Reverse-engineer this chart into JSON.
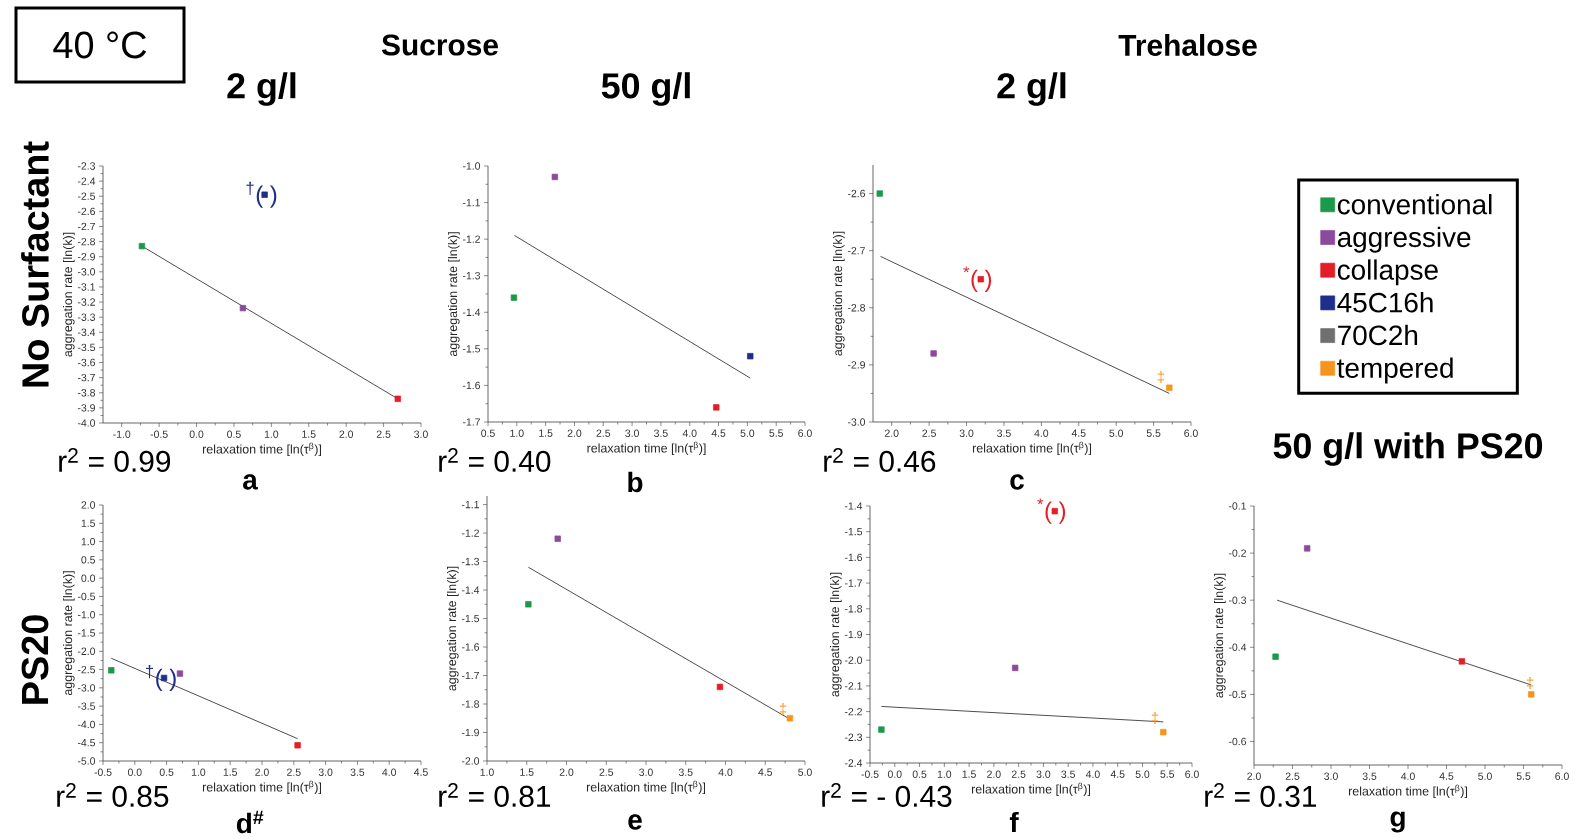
{
  "chart_data": [
    {
      "type": "other",
      "annotations": [
        "40 °C",
        "Sucrose",
        "Trehalose",
        "No Surfactant",
        "PS20"
      ]
    },
    {
      "type": "scatter",
      "title": "2 g/l",
      "xlabel": "relaxation time [ln(τ$^{β}$)]",
      "ylabel": "aggregation rate [ln(k)]",
      "marker": "square",
      "xlim": [
        -1.25,
        3.0
      ],
      "xticks": [
        {
          "value": -1.0,
          "label": "-1.0"
        },
        -0.5,
        {
          "value": 0.0,
          "label": "0.0"
        },
        0.5,
        {
          "value": 1.0,
          "label": "1.0"
        },
        1.5,
        {
          "value": 2.0,
          "label": "2.0"
        },
        2.5,
        {
          "value": 3.0,
          "label": "3.0"
        }
      ],
      "ylim": [
        -4.0,
        -2.3
      ],
      "yticks": [
        {
          "value": -4.0,
          "label": "-4.0"
        },
        -3.9,
        -3.8,
        -3.7,
        -3.6,
        -3.5,
        -3.4,
        -3.3,
        -3.2,
        -3.1,
        {
          "value": -3.0,
          "label": "-3.0"
        },
        -2.9,
        -2.8,
        -2.7,
        -2.6,
        -2.5,
        -2.4,
        -2.3
      ],
      "series": [
        {
          "color": "#1b9a4b",
          "x": [
            -0.73
          ],
          "values": [
            -2.83
          ]
        },
        {
          "color": "#8b4a9e",
          "x": [
            0.62
          ],
          "values": [
            -3.24
          ]
        },
        {
          "color": "#e41e26",
          "x": [
            2.69
          ],
          "values": [
            -3.84
          ]
        },
        {
          "color": "#1f2d8c",
          "x": [
            0.91
          ],
          "values": [
            -2.49
          ]
        },
        {
          "type": "line",
          "color": "#000000",
          "marker": "none",
          "x": [
            -0.73,
            2.69
          ],
          "values": [
            -2.83,
            -3.84
          ]
        }
      ],
      "annotations": [
        "r$^{2}$ = 0.99",
        "a",
        {
          "text": "$^{†}$( )",
          "x": 0.91,
          "y": -2.49
        }
      ]
    },
    {
      "type": "scatter",
      "title": "50 g/l",
      "xlabel": "relaxation time [ln(τ$^{β}$)]",
      "ylabel": "aggregation rate [ln(k)]",
      "marker": "square",
      "xlim": [
        0.5,
        6.0
      ],
      "xticks": [
        0.5,
        {
          "value": 1.0,
          "label": "1.0"
        },
        1.5,
        {
          "value": 2.0,
          "label": "2.0"
        },
        2.5,
        {
          "value": 3.0,
          "label": "3.0"
        },
        3.5,
        {
          "value": 4.0,
          "label": "4.0"
        },
        4.5,
        {
          "value": 5.0,
          "label": "5.0"
        },
        5.5,
        {
          "value": 6.0,
          "label": "6.0"
        }
      ],
      "ylim": [
        -1.7,
        -1.0
      ],
      "yticks": [
        -1.7,
        -1.6,
        -1.5,
        -1.4,
        -1.3,
        -1.2,
        -1.1,
        {
          "value": -1.0,
          "label": "-1.0"
        }
      ],
      "series": [
        {
          "color": "#1b9a4b",
          "x": [
            0.95
          ],
          "values": [
            -1.36
          ]
        },
        {
          "color": "#8b4a9e",
          "x": [
            1.66
          ],
          "values": [
            -1.03
          ]
        },
        {
          "color": "#e41e26",
          "x": [
            4.46
          ],
          "values": [
            -1.66
          ]
        },
        {
          "color": "#1f2d8c",
          "x": [
            5.05
          ],
          "values": [
            -1.52
          ]
        },
        {
          "type": "line",
          "color": "#000000",
          "marker": "none",
          "x": [
            0.96,
            5.05
          ],
          "values": [
            -1.19,
            -1.58
          ]
        }
      ],
      "annotations": [
        "r$^{2}$ = 0.40",
        "b"
      ]
    },
    {
      "type": "scatter",
      "title": "2 g/l",
      "xlabel": "relaxation time [ln(τ$^{β}$)]",
      "ylabel": "aggregation rate [ln(k)]",
      "marker": "square",
      "xlim": [
        1.75,
        6.0
      ],
      "xticks": [
        {
          "value": 2.0,
          "label": "2.0"
        },
        2.5,
        {
          "value": 3.0,
          "label": "3.0"
        },
        3.5,
        {
          "value": 4.0,
          "label": "4.0"
        },
        4.5,
        {
          "value": 5.0,
          "label": "5.0"
        },
        5.5,
        {
          "value": 6.0,
          "label": "6.0"
        }
      ],
      "ylim": [
        -3.0,
        -2.55
      ],
      "yticks": [
        {
          "value": -3.0,
          "label": "-3.0"
        },
        -2.9,
        -2.8,
        -2.7,
        -2.6
      ],
      "series": [
        {
          "color": "#1b9a4b",
          "x": [
            1.84
          ],
          "values": [
            -2.6
          ]
        },
        {
          "color": "#8b4a9e",
          "x": [
            2.56
          ],
          "values": [
            -2.88
          ]
        },
        {
          "color": "#e41e26",
          "x": [
            3.19
          ],
          "values": [
            -2.75
          ]
        },
        {
          "color": "#f7941d",
          "x": [
            5.71
          ],
          "values": [
            -2.94
          ]
        },
        {
          "type": "line",
          "color": "#000000",
          "marker": "none",
          "x": [
            1.85,
            5.71
          ],
          "values": [
            -2.71,
            -2.95
          ]
        }
      ],
      "annotations": [
        "r$^{2}$ = 0.46",
        "c",
        {
          "text": "$^{*}$( )",
          "x": 3.19,
          "y": -2.75
        },
        "‡"
      ]
    },
    {
      "type": "scatter",
      "xlabel": "relaxation time [ln(τ$^{β}$)]",
      "ylabel": "aggregation rate [ln(k)]",
      "marker": "square",
      "xlim": [
        -0.5,
        4.5
      ],
      "xticks": [
        -0.5,
        {
          "value": 0.0,
          "label": "0.0"
        },
        0.5,
        {
          "value": 1.0,
          "label": "1.0"
        },
        1.5,
        {
          "value": 2.0,
          "label": "2.0"
        },
        2.5,
        {
          "value": 3.0,
          "label": "3.0"
        },
        3.5,
        {
          "value": 4.0,
          "label": "4.0"
        },
        4.5
      ],
      "ylim": [
        -5.0,
        2.0
      ],
      "yticks": [
        {
          "value": -5.0,
          "label": "-5.0"
        },
        -4.5,
        {
          "value": -4.0,
          "label": "-4.0"
        },
        -3.5,
        {
          "value": -3.0,
          "label": "-3.0"
        },
        -2.5,
        {
          "value": -2.0,
          "label": "-2.0"
        },
        -1.5,
        {
          "value": -1.0,
          "label": "-1.0"
        },
        -0.5,
        {
          "value": 0.0,
          "label": "0.0"
        },
        0.5,
        {
          "value": 1.0,
          "label": "1.0"
        },
        1.5,
        {
          "value": 2.0,
          "label": "2.0"
        }
      ],
      "series": [
        {
          "color": "#1b9a4b",
          "x": [
            -0.37
          ],
          "values": [
            -2.52
          ]
        },
        {
          "color": "#1f2d8c",
          "x": [
            0.46
          ],
          "values": [
            -2.73
          ]
        },
        {
          "color": "#8b4a9e",
          "x": [
            0.71
          ],
          "values": [
            -2.61
          ]
        },
        {
          "color": "#e41e26",
          "x": [
            2.56
          ],
          "values": [
            -4.57
          ]
        },
        {
          "type": "line",
          "color": "#000000",
          "marker": "none",
          "x": [
            -0.37,
            2.56
          ],
          "values": [
            -2.19,
            -4.39
          ]
        }
      ],
      "annotations": [
        "r$^{2}$ = 0.85",
        "d$^{#}$",
        {
          "text": "$^{†}$( )",
          "x": 0.46,
          "y": -2.73
        }
      ]
    },
    {
      "type": "scatter",
      "xlabel": "relaxation time [ln(τ$^{β}$)]",
      "ylabel": "aggregation rate [ln(k)]",
      "marker": "square",
      "xlim": [
        1.0,
        5.0
      ],
      "xticks": [
        {
          "value": 1.0,
          "label": "1.0"
        },
        1.5,
        {
          "value": 2.0,
          "label": "2.0"
        },
        2.5,
        {
          "value": 3.0,
          "label": "3.0"
        },
        3.5,
        {
          "value": 4.0,
          "label": "4.0"
        },
        4.5,
        {
          "value": 5.0,
          "label": "5.0"
        }
      ],
      "ylim": [
        -2.0,
        -1.07
      ],
      "yticks": [
        {
          "value": -2.0,
          "label": "-2.0"
        },
        -1.9,
        -1.8,
        -1.7,
        -1.6,
        -1.5,
        -1.4,
        -1.3,
        -1.2,
        -1.1
      ],
      "series": [
        {
          "color": "#1b9a4b",
          "x": [
            1.52
          ],
          "values": [
            -1.45
          ]
        },
        {
          "color": "#8b4a9e",
          "x": [
            1.89
          ],
          "values": [
            -1.22
          ]
        },
        {
          "color": "#e41e26",
          "x": [
            3.93
          ],
          "values": [
            -1.74
          ]
        },
        {
          "color": "#f7941d",
          "x": [
            4.81
          ],
          "values": [
            -1.85
          ]
        },
        {
          "type": "line",
          "color": "#000000",
          "marker": "none",
          "x": [
            1.52,
            4.79
          ],
          "values": [
            -1.32,
            -1.85
          ]
        }
      ],
      "annotations": [
        "r$^{2}$ = 0.81",
        "e",
        "‡"
      ]
    },
    {
      "type": "scatter",
      "xlabel": "relaxation time [ln(τ$^{β}$)]",
      "ylabel": "aggregation rate [ln(k)]",
      "marker": "square",
      "xlim": [
        -0.5,
        6.0
      ],
      "xticks": [
        -0.5,
        {
          "value": 0.0,
          "label": "0.0"
        },
        0.5,
        {
          "value": 1.0,
          "label": "1.0"
        },
        1.5,
        {
          "value": 2.0,
          "label": "2.0"
        },
        2.5,
        {
          "value": 3.0,
          "label": "3.0"
        },
        3.5,
        {
          "value": 4.0,
          "label": "4.0"
        },
        4.5,
        {
          "value": 5.0,
          "label": "5.0"
        },
        5.5,
        {
          "value": 6.0,
          "label": "6.0"
        }
      ],
      "ylim": [
        -2.4,
        -1.4
      ],
      "yticks": [
        -2.4,
        -2.3,
        -2.2,
        -2.1,
        {
          "value": -2.0,
          "label": "-2.0"
        },
        -1.9,
        -1.8,
        -1.7,
        -1.6,
        -1.5,
        -1.4
      ],
      "series": [
        {
          "color": "#1b9a4b",
          "x": [
            -0.27
          ],
          "values": [
            -2.27
          ]
        },
        {
          "color": "#8b4a9e",
          "x": [
            2.43
          ],
          "values": [
            -2.03
          ]
        },
        {
          "color": "#e41e26",
          "x": [
            3.23
          ],
          "values": [
            -1.42
          ]
        },
        {
          "color": "#f7941d",
          "x": [
            5.42
          ],
          "values": [
            -2.28
          ]
        },
        {
          "type": "line",
          "color": "#000000",
          "marker": "none",
          "x": [
            -0.27,
            5.42
          ],
          "values": [
            -2.18,
            -2.24
          ]
        }
      ],
      "annotations": [
        "r$^{2}$ = - 0.43",
        "f",
        {
          "text": "$^{*}$( )",
          "x": 3.23,
          "y": -1.42
        },
        "‡"
      ]
    },
    {
      "type": "scatter",
      "title": "50 g/l with PS20",
      "xlabel": "relaxation time [ln(τ$^{β}$)]",
      "ylabel": "aggregation rate [ln(k)]",
      "marker": "square",
      "legend": "top",
      "xlim": [
        2.0,
        6.0
      ],
      "xticks": [
        {
          "value": 2.0,
          "label": "2.0"
        },
        2.5,
        {
          "value": 3.0,
          "label": "3.0"
        },
        3.5,
        {
          "value": 4.0,
          "label": "4.0"
        },
        4.5,
        {
          "value": 5.0,
          "label": "5.0"
        },
        5.5,
        {
          "value": 6.0,
          "label": "6.0"
        }
      ],
      "ylim": [
        -0.65,
        -0.1
      ],
      "yticks": [
        -0.6,
        -0.5,
        -0.4,
        -0.3,
        -0.2,
        -0.1
      ],
      "series": [
        {
          "name": "conventional",
          "color": "#1b9a4b",
          "x": [
            2.28
          ],
          "values": [
            -0.42
          ]
        },
        {
          "name": "aggressive",
          "color": "#8b4a9e",
          "x": [
            2.69
          ],
          "values": [
            -0.19
          ]
        },
        {
          "name": "collapse",
          "color": "#e41e26",
          "x": [
            4.7
          ],
          "values": [
            -0.43
          ]
        },
        {
          "name": "45C16h",
          "color": "#1f2d8c"
        },
        {
          "name": "70C2h",
          "color": "#707070"
        },
        {
          "name": "tempered",
          "color": "#f7941d",
          "x": [
            5.6
          ],
          "values": [
            -0.5
          ]
        },
        {
          "type": "line",
          "color": "#000000",
          "marker": "none",
          "x": [
            2.3,
            5.6
          ],
          "values": [
            -0.3,
            -0.48
          ]
        }
      ],
      "annotations": [
        "r$^{2}$ = 0.31",
        "g",
        "‡"
      ]
    }
  ]
}
